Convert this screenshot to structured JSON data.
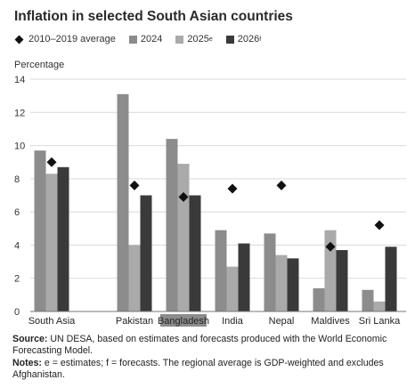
{
  "header": {
    "title": "Inflation in selected South Asian countries"
  },
  "legend": {
    "avg_label": "2010–2019 average",
    "y2024_label": "2024",
    "y2025_label": "2025",
    "y2025_sup": "e",
    "y2026_label": "2026",
    "y2026_sup": "f"
  },
  "axis": {
    "ylabel": "Percentage"
  },
  "footer": {
    "source_label": "Source:",
    "source_text": "UN DESA, based on estimates and forecasts produced with the World Economic Forecasting Model.",
    "notes_label": "Notes:",
    "notes_text": "e = estimates; f = forecasts. The regional average is GDP-weighted and excludes Afghanistan."
  },
  "colors": {
    "y2024": "#8c8c8c",
    "y2025": "#aaaaaa",
    "y2026": "#3a3a3a",
    "avg_marker": "#111111",
    "grid": "#d9d9d9",
    "axis": "#777777",
    "highlight_bg": "#8c8c8c"
  },
  "chart_data": {
    "type": "bar",
    "title": "Inflation in selected South Asian countries",
    "ylabel": "Percentage",
    "ylim": [
      0,
      14
    ],
    "yticks": [
      0,
      2,
      4,
      6,
      8,
      10,
      12,
      14
    ],
    "grid": true,
    "legend_position": "top-left",
    "categories": [
      "South Asia",
      "Pakistan",
      "Bangladesh",
      "India",
      "Nepal",
      "Maldives",
      "Sri Lanka"
    ],
    "highlighted_category": "Bangladesh",
    "series": [
      {
        "name": "2024",
        "values": [
          9.7,
          13.1,
          10.4,
          4.9,
          4.7,
          1.4,
          1.3
        ]
      },
      {
        "name": "2025",
        "values": [
          8.3,
          4.0,
          8.9,
          2.7,
          3.4,
          4.9,
          0.6
        ]
      },
      {
        "name": "2026",
        "values": [
          8.7,
          7.0,
          7.0,
          4.1,
          3.2,
          3.7,
          3.9
        ]
      }
    ],
    "markers": {
      "name": "2010–2019 average",
      "values": [
        9.0,
        7.6,
        6.9,
        7.4,
        7.6,
        3.9,
        5.2
      ]
    }
  }
}
